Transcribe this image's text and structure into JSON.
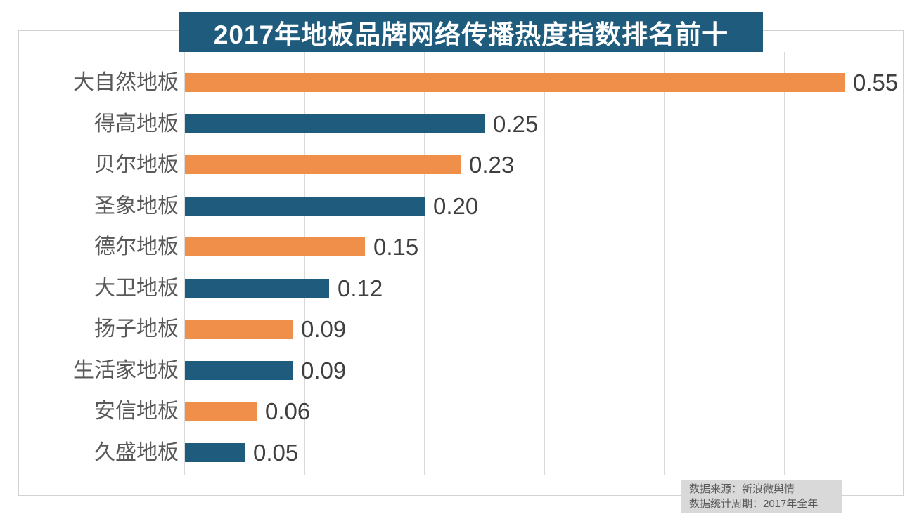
{
  "title": "2017年地板品牌网络传播热度指数排名前十",
  "chart_data": {
    "type": "bar",
    "orientation": "horizontal",
    "title": "2017年地板品牌网络传播热度指数排名前十",
    "categories": [
      "大自然地板",
      "得高地板",
      "贝尔地板",
      "圣象地板",
      "德尔地板",
      "大卫地板",
      "扬子地板",
      "生活家地板",
      "安信地板",
      "久盛地板"
    ],
    "values": [
      0.55,
      0.25,
      0.23,
      0.2,
      0.15,
      0.12,
      0.09,
      0.09,
      0.06,
      0.05
    ],
    "value_labels": [
      "0.55",
      "0.25",
      "0.23",
      "0.20",
      "0.15",
      "0.12",
      "0.09",
      "0.09",
      "0.06",
      "0.05"
    ],
    "xlim": [
      0,
      0.6
    ],
    "gridline_interval": 0.1,
    "grid": true,
    "legend": "none",
    "bar_colors_alternating": [
      "#ef8f4a",
      "#1e5b7c"
    ]
  },
  "source_note": {
    "line1": "数据来源：新浪微舆情",
    "line2": "数据统计周期：2017年全年"
  },
  "colors": {
    "orange": "#ef8f4a",
    "blue": "#1e5b7c",
    "title_bg": "#1e5b7c",
    "title_text": "#ffffff",
    "gridline": "#d9d9d9",
    "category_label": "#595959",
    "value_label": "#3f3f3f",
    "note_bg": "#d9d9d9",
    "note_text": "#595959",
    "frame_border": "#d2d2d2"
  }
}
